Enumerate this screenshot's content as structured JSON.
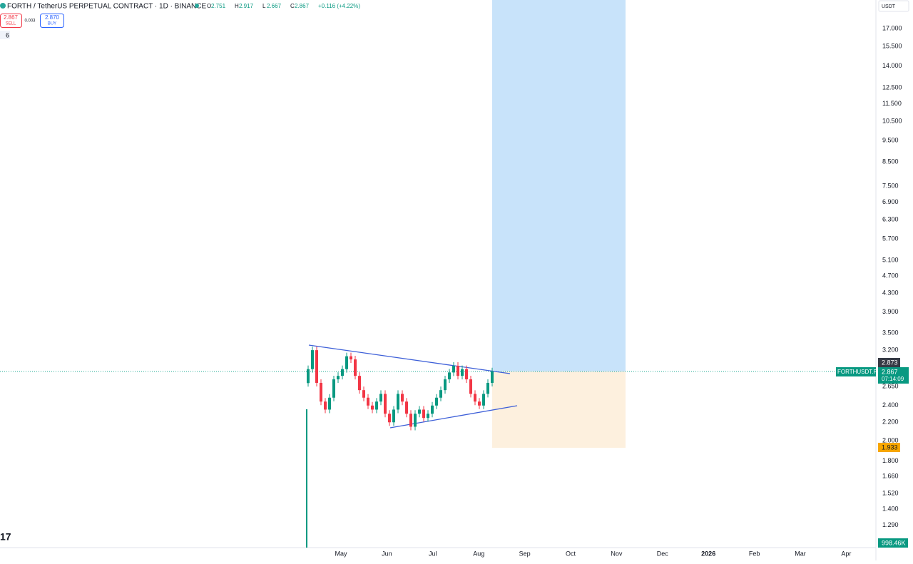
{
  "header": {
    "symbol": "FORTH / TetherUS PERPETUAL CONTRACT · 1D · BINANCE",
    "ohlc": [
      {
        "k": "O",
        "v": "2.751"
      },
      {
        "k": "H",
        "v": "2.917"
      },
      {
        "k": "L",
        "v": "2.667"
      },
      {
        "k": "C",
        "v": "2.867"
      }
    ],
    "change": "+0.116 (+4.22%)"
  },
  "trade": {
    "sell_price": "2.867",
    "sell": "SELL",
    "spread": "0.003",
    "buy_price": "2.870",
    "buy": "BUY",
    "indicators": "6"
  },
  "currency": "USDT",
  "price_axis": [
    {
      "value": 17,
      "label": "17.000"
    },
    {
      "value": 15.5,
      "label": "15.500"
    },
    {
      "value": 14,
      "label": "14.000"
    },
    {
      "value": 12.5,
      "label": "12.500"
    },
    {
      "value": 11.5,
      "label": "11.500"
    },
    {
      "value": 10.5,
      "label": "10.500"
    },
    {
      "value": 9.5,
      "label": "9.500"
    },
    {
      "value": 8.5,
      "label": "8.500"
    },
    {
      "value": 7.5,
      "label": "7.500"
    },
    {
      "value": 6.9,
      "label": "6.900"
    },
    {
      "value": 6.3,
      "label": "6.300"
    },
    {
      "value": 5.7,
      "label": "5.700"
    },
    {
      "value": 5.1,
      "label": "5.100"
    },
    {
      "value": 4.7,
      "label": "4.700"
    },
    {
      "value": 4.3,
      "label": "4.300"
    },
    {
      "value": 3.9,
      "label": "3.900"
    },
    {
      "value": 3.5,
      "label": "3.500"
    },
    {
      "value": 3.2,
      "label": "3.200"
    },
    {
      "value": 2.65,
      "label": "2.650"
    },
    {
      "value": 2.4,
      "label": "2.400"
    },
    {
      "value": 2.2,
      "label": "2.200"
    },
    {
      "value": 2.0,
      "label": "2.000"
    },
    {
      "value": 1.8,
      "label": "1.800"
    },
    {
      "value": 1.66,
      "label": "1.660"
    },
    {
      "value": 1.52,
      "label": "1.520"
    },
    {
      "value": 1.4,
      "label": "1.400"
    },
    {
      "value": 1.29,
      "label": "1.290"
    }
  ],
  "time_axis": [
    "May",
    "Jun",
    "Jul",
    "Aug",
    "Sep",
    "Oct",
    "Nov",
    "Dec",
    "2026",
    "Feb",
    "Mar",
    "Apr"
  ],
  "closes": [
    2.9,
    3.2,
    2.7,
    2.45,
    2.35,
    2.5,
    2.75,
    2.8,
    2.9,
    3.1,
    3.05,
    2.8,
    2.6,
    2.5,
    2.4,
    2.35,
    2.45,
    2.55,
    2.3,
    2.2,
    2.35,
    2.55,
    2.45,
    2.3,
    2.15,
    2.3,
    2.35,
    2.25,
    2.3,
    2.4,
    2.5,
    2.6,
    2.75,
    2.85,
    2.95,
    2.8,
    2.9,
    2.75,
    2.55,
    2.45,
    2.4,
    2.55,
    2.7,
    2.867
  ],
  "badges": {
    "target": "2.873",
    "symbol": "FORTHUSDT.P",
    "last": "2.867",
    "countdown": "07:14:09",
    "stop": "1.933",
    "volume": "998.46K"
  },
  "logo": "17"
}
